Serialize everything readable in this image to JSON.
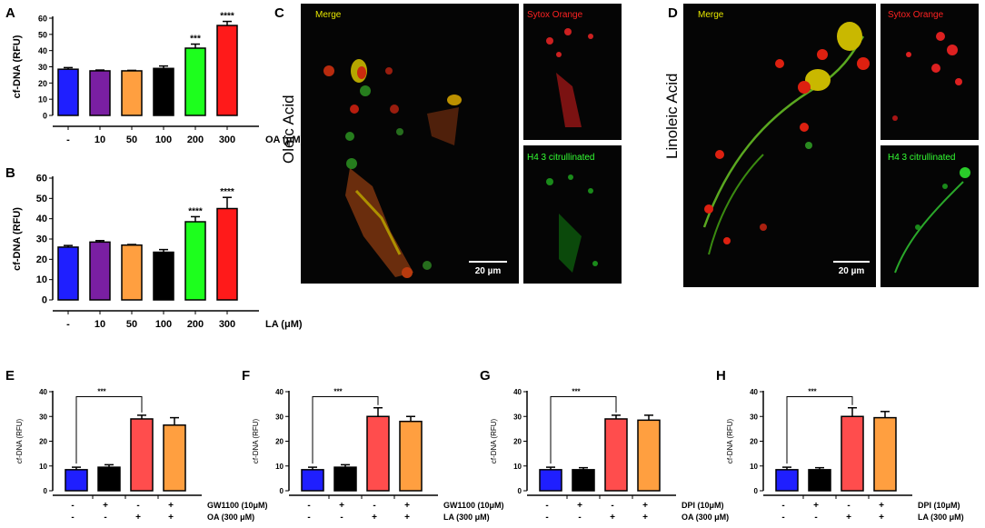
{
  "colors": {
    "blue": "#1f1fff",
    "purple": "#7a1fa2",
    "orange": "#ff9f40",
    "black": "#000000",
    "green": "#1dff1d",
    "red": "#ff1a1a",
    "salmon": "#ff4d4d",
    "merge_label": "#e6e600",
    "sytox_label": "#ff2222",
    "h4_label": "#33ff33"
  },
  "panel_labels": {
    "A": "A",
    "B": "B",
    "C": "C",
    "D": "D",
    "E": "E",
    "F": "F",
    "G": "G",
    "H": "H"
  },
  "images": {
    "C": {
      "side_label": "Oleic Acid",
      "merge_label": "Merge",
      "sytox_label": "Sytox Orange",
      "h4_label": "H4 3 citrullinated",
      "scale_label": "20 µm"
    },
    "D": {
      "side_label": "Linoleic Acid",
      "merge_label": "Merge",
      "sytox_label": "Sytox Orange",
      "h4_label": "H4 3 citrullinated",
      "scale_label": "20 µm"
    }
  },
  "chart_data": [
    {
      "id": "A",
      "type": "bar",
      "ylabel": "cf-DNA (RFU)",
      "xlabel": "OA (μM)",
      "categories": [
        "-",
        "10",
        "50",
        "100",
        "200",
        "300"
      ],
      "values": [
        28.5,
        27.5,
        27.5,
        29,
        41.5,
        55.5
      ],
      "errors": [
        1,
        0.5,
        0.3,
        1.5,
        2.5,
        2.5
      ],
      "colors": [
        "blue",
        "purple",
        "orange",
        "black",
        "green",
        "red"
      ],
      "significance": [
        "",
        "",
        "",
        "",
        "***",
        "****"
      ],
      "ylim": [
        0,
        60
      ],
      "yticks": [
        0,
        10,
        20,
        30,
        40,
        50,
        60
      ]
    },
    {
      "id": "B",
      "type": "bar",
      "ylabel": "cf-DNA (RFU)",
      "xlabel": "LA (μM)",
      "categories": [
        "-",
        "10",
        "50",
        "100",
        "200",
        "300"
      ],
      "values": [
        26,
        28.5,
        27,
        23.5,
        38.5,
        45
      ],
      "errors": [
        0.8,
        0.7,
        0.3,
        1.3,
        2.5,
        5.5
      ],
      "colors": [
        "blue",
        "purple",
        "orange",
        "black",
        "green",
        "red"
      ],
      "significance": [
        "",
        "",
        "",
        "",
        "****",
        "****"
      ],
      "ylim": [
        0,
        60
      ],
      "yticks": [
        0,
        10,
        20,
        30,
        40,
        50,
        60
      ]
    },
    {
      "id": "E",
      "type": "bar",
      "ylabel": "cf-DNA (RFU)",
      "values": [
        8.5,
        9.5,
        29,
        26.5
      ],
      "errors": [
        1,
        1,
        1.5,
        3
      ],
      "colors": [
        "blue",
        "black",
        "salmon",
        "orange"
      ],
      "row1_label": "GW1100 (10μM)",
      "row1": [
        "-",
        "+",
        "-",
        "+"
      ],
      "row2_label": "OA (300 μM)",
      "row2": [
        "-",
        "-",
        "+",
        "+"
      ],
      "significance": "***",
      "ylim": [
        0,
        40
      ],
      "yticks": [
        0,
        10,
        20,
        30,
        40
      ]
    },
    {
      "id": "F",
      "type": "bar",
      "ylabel": "cf-DNA (RFU)",
      "values": [
        8.5,
        9.5,
        30,
        28
      ],
      "errors": [
        1,
        1,
        3.5,
        2
      ],
      "colors": [
        "blue",
        "black",
        "salmon",
        "orange"
      ],
      "row1_label": "GW1100 (10μM)",
      "row1": [
        "-",
        "+",
        "-",
        "+"
      ],
      "row2_label": "LA (300 μM)",
      "row2": [
        "-",
        "-",
        "+",
        "+"
      ],
      "significance": "***",
      "ylim": [
        0,
        40
      ],
      "yticks": [
        0,
        10,
        20,
        30,
        40
      ]
    },
    {
      "id": "G",
      "type": "bar",
      "ylabel": "cf-DNA (RFU)",
      "values": [
        8.5,
        8.5,
        29,
        28.5
      ],
      "errors": [
        1,
        0.8,
        1.5,
        2
      ],
      "colors": [
        "blue",
        "black",
        "salmon",
        "orange"
      ],
      "row1_label": "DPI (10μM)",
      "row1": [
        "-",
        "+",
        "-",
        "+"
      ],
      "row2_label": "OA (300 μM)",
      "row2": [
        "-",
        "-",
        "+",
        "+"
      ],
      "significance": "***",
      "ylim": [
        0,
        40
      ],
      "yticks": [
        0,
        10,
        20,
        30,
        40
      ]
    },
    {
      "id": "H",
      "type": "bar",
      "ylabel": "cf-DNA (RFU)",
      "values": [
        8.5,
        8.5,
        30,
        29.5
      ],
      "errors": [
        1,
        0.8,
        3.5,
        2.5
      ],
      "colors": [
        "blue",
        "black",
        "salmon",
        "orange"
      ],
      "row1_label": "DPI (10μM)",
      "row1": [
        "-",
        "+",
        "-",
        "+"
      ],
      "row2_label": "LA (300 μM)",
      "row2": [
        "-",
        "-",
        "+",
        "+"
      ],
      "significance": "***",
      "ylim": [
        0,
        40
      ],
      "yticks": [
        0,
        10,
        20,
        30,
        40
      ]
    }
  ]
}
